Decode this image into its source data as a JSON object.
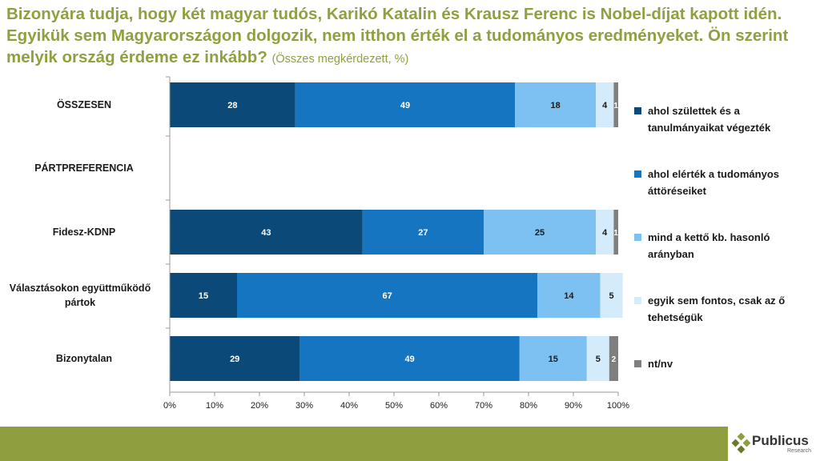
{
  "title": {
    "main": "Bizonyára tudja, hogy két magyar tudós, Karikó Katalin és Krausz Ferenc is Nobel-díjat kapott idén. Egyikük sem Magyarországon dolgozik, nem itthon érték el a tudományos eredményeket. Ön szerint melyik ország érdeme ez inkább?",
    "subtitle": "(Összes megkérdezett, %)"
  },
  "chart_data": {
    "type": "bar",
    "orientation": "horizontal",
    "stacked": true,
    "categories": [
      "ÖSSZESEN",
      "PÁRTPREFERENCIA",
      "Fidesz-KDNP",
      "Választásokon együttműködő pártok",
      "Bizonytalan"
    ],
    "series": [
      {
        "name": "ahol születtek és a tanulmányaikat végezték",
        "color": "#0b4a78",
        "values": [
          28,
          null,
          43,
          15,
          29
        ]
      },
      {
        "name": "ahol elérték a tudományos áttöréseiket",
        "color": "#1575c0",
        "values": [
          49,
          null,
          27,
          67,
          49
        ]
      },
      {
        "name": "mind a kettő kb. hasonló arányban",
        "color": "#7dc0f2",
        "values": [
          18,
          null,
          25,
          14,
          15
        ]
      },
      {
        "name": "egyik sem fontos, csak az ő tehetségük",
        "color": "#d4ebfb",
        "values": [
          4,
          null,
          4,
          5,
          5
        ]
      },
      {
        "name": "nt/nv",
        "color": "#7f7f7f",
        "values": [
          1,
          null,
          1,
          null,
          2
        ]
      }
    ],
    "xlim": [
      0,
      100
    ],
    "x_ticks": [
      "0%",
      "10%",
      "20%",
      "30%",
      "40%",
      "50%",
      "60%",
      "70%",
      "80%",
      "90%",
      "100%"
    ],
    "legend_position": "right",
    "grid": false
  },
  "brand": {
    "name": "Publicus",
    "sub": "Research",
    "footer_color": "#8f9e3e"
  }
}
